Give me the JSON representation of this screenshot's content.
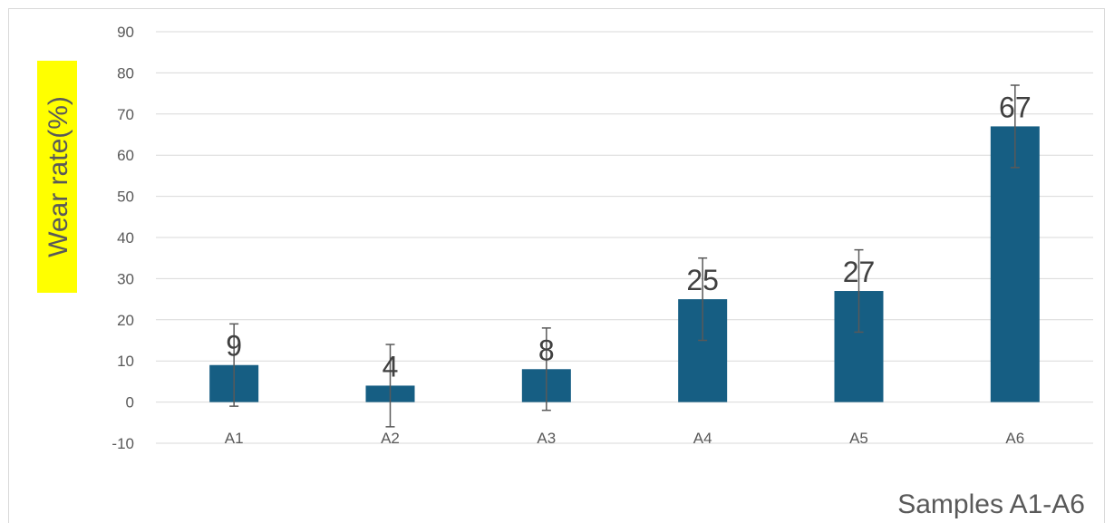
{
  "chart_data": {
    "type": "bar",
    "categories": [
      "A1",
      "A2",
      "A3",
      "A4",
      "A5",
      "A6"
    ],
    "series": [
      {
        "values": [
          9,
          4,
          8,
          25,
          27,
          67
        ],
        "error": [
          10,
          10,
          10,
          10,
          10,
          10
        ]
      }
    ],
    "data_labels": [
      "9",
      "4",
      "8",
      "25",
      "27",
      "67"
    ],
    "xlabel": "Samples A1-A6",
    "ylabel": "Wear rate(%)",
    "ylim": [
      -10,
      90
    ],
    "yticks": [
      -10,
      0,
      10,
      20,
      30,
      40,
      50,
      60,
      70,
      80,
      90
    ],
    "grid": true,
    "colors": {
      "bar": "#165e83",
      "error_bar": "#595959",
      "grid": "#d9d9d9",
      "ylabel_highlight": "#ffff00"
    }
  }
}
